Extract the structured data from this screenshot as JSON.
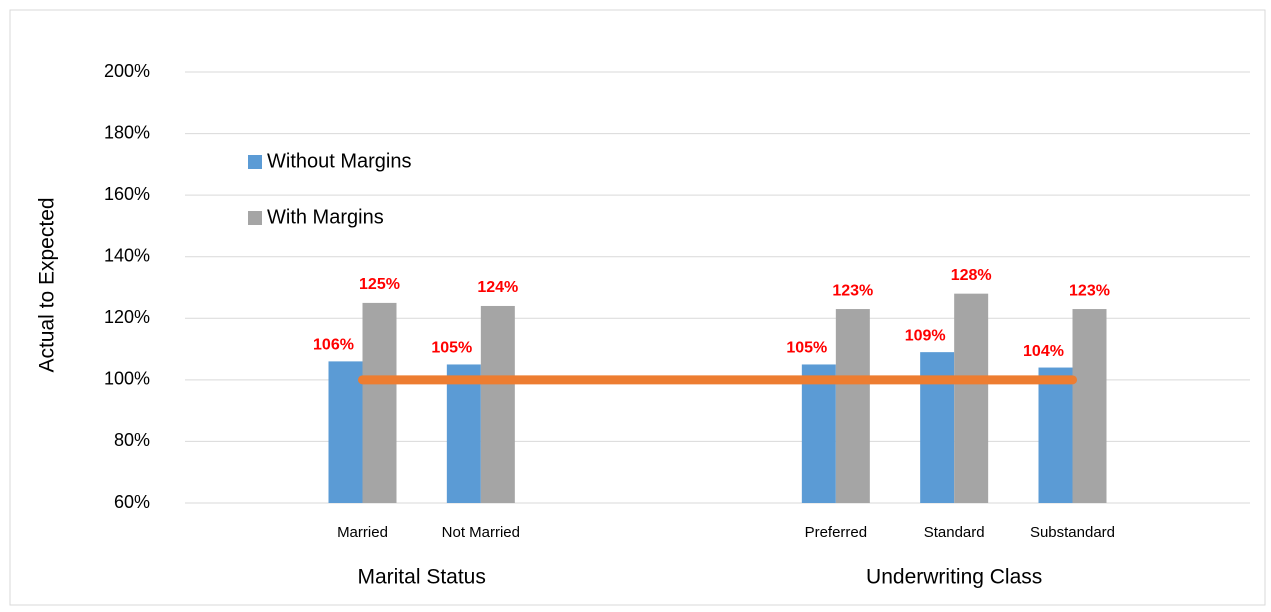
{
  "chart_data": {
    "type": "bar",
    "y_label": "Actual to Expected",
    "categories": [
      null,
      "Married",
      "Not Married",
      null,
      null,
      "Preferred",
      "Standard",
      "Substandard",
      null
    ],
    "x_groups": [
      {
        "label": "Marital Status",
        "categories": [
          "Married",
          "Not Married"
        ]
      },
      {
        "label": "Underwriting Class",
        "categories": [
          "Preferred",
          "Standard",
          "Substandard"
        ]
      }
    ],
    "series": [
      {
        "name": "Without Margins",
        "color": "#5b9bd5",
        "values": [
          null,
          106,
          105,
          null,
          null,
          105,
          109,
          104,
          null
        ],
        "value_labels": [
          null,
          "106%",
          "105%",
          null,
          null,
          "105%",
          "109%",
          "104%",
          null
        ]
      },
      {
        "name": "With Margins",
        "color": "#a5a5a5",
        "values": [
          null,
          125,
          124,
          null,
          null,
          123,
          128,
          123,
          null
        ],
        "value_labels": [
          null,
          "125%",
          "124%",
          null,
          null,
          "123%",
          "128%",
          "123%",
          null
        ]
      }
    ],
    "reference_line": {
      "color": "#ed7d31",
      "values": [
        null,
        100,
        100,
        100,
        100,
        100,
        100,
        100,
        null
      ]
    },
    "value_label_color": "#ff0000",
    "ylim": [
      60,
      200
    ],
    "yticks": [
      {
        "value": 60,
        "label": "60%"
      },
      {
        "value": 80,
        "label": "80%"
      },
      {
        "value": 100,
        "label": "100%"
      },
      {
        "value": 120,
        "label": "120%"
      },
      {
        "value": 140,
        "label": "140%"
      },
      {
        "value": 160,
        "label": "160%"
      },
      {
        "value": 180,
        "label": "180%"
      },
      {
        "value": 200,
        "label": "200%"
      }
    ],
    "grid": true,
    "legend_position": "upper-left"
  }
}
